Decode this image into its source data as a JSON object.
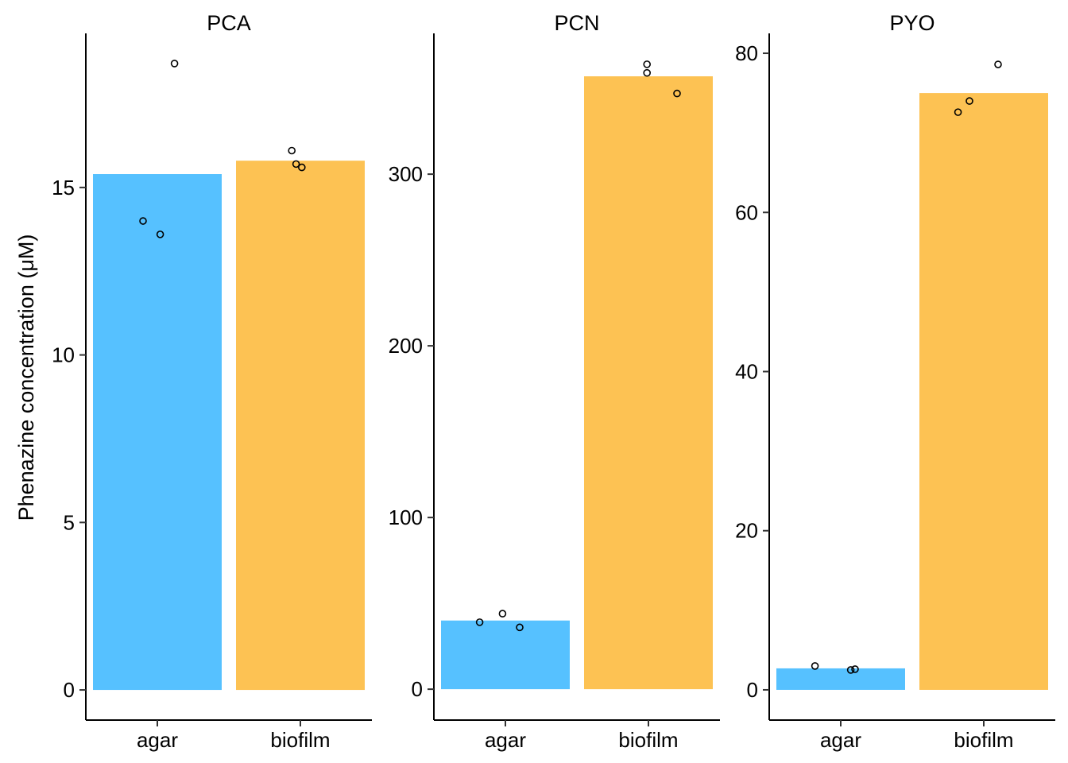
{
  "chart_data": {
    "type": "bar",
    "ylabel": "Phenazine concentration (μM)",
    "colors": {
      "agar": "#56c1ff",
      "biofilm": "#fdc253"
    },
    "categories": [
      "agar",
      "biofilm"
    ],
    "panels": [
      {
        "title": "PCA",
        "ylim": [
          -0.9,
          19.6
        ],
        "yticks": [
          0,
          5,
          10,
          15
        ],
        "values": {
          "agar": 15.4,
          "biofilm": 15.8
        },
        "points": {
          "agar": [
            18.7,
            14.0,
            13.6
          ],
          "biofilm": [
            16.1,
            15.7,
            15.6
          ]
        }
      },
      {
        "title": "PCN",
        "ylim": [
          -18,
          382
        ],
        "yticks": [
          0,
          100,
          200,
          300
        ],
        "values": {
          "agar": 40,
          "biofilm": 357
        },
        "points": {
          "agar": [
            36,
            39,
            44
          ],
          "biofilm": [
            364,
            359,
            347
          ]
        }
      },
      {
        "title": "PYO",
        "ylim": [
          -3.8,
          82.5
        ],
        "yticks": [
          0,
          20,
          40,
          60,
          80
        ],
        "values": {
          "agar": 2.7,
          "biofilm": 75.0
        },
        "points": {
          "agar": [
            3.0,
            2.5,
            2.6
          ],
          "biofilm": [
            78.6,
            74.0,
            72.6
          ]
        }
      }
    ]
  }
}
